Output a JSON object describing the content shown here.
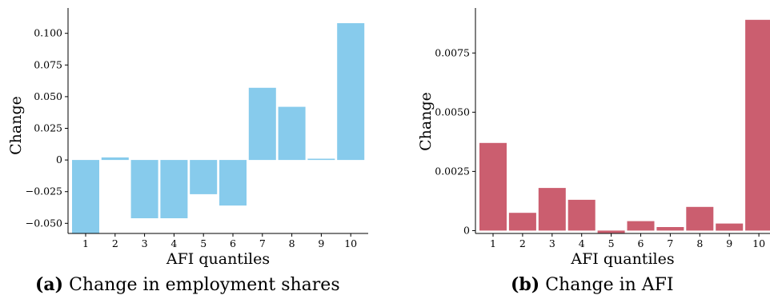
{
  "chart_data": [
    {
      "type": "bar",
      "panel_label": "(a)",
      "caption": "Change in employment shares",
      "xlabel": "AFI quantiles",
      "ylabel": "Change",
      "categories": [
        "1",
        "2",
        "3",
        "4",
        "5",
        "6",
        "7",
        "8",
        "9",
        "10"
      ],
      "values": [
        -0.063,
        0.002,
        -0.046,
        -0.046,
        -0.027,
        -0.036,
        0.057,
        0.042,
        0.001,
        0.108
      ],
      "ylim": [
        -0.058,
        0.12
      ],
      "yticks": [
        -0.05,
        -0.025,
        0,
        0.025,
        0.05,
        0.075,
        0.1
      ],
      "ytick_labels": [
        "−0.050",
        "−0.025",
        "0",
        "0.025",
        "0.050",
        "0.075",
        "0.100"
      ],
      "color": "#87CBEC",
      "grid": false
    },
    {
      "type": "bar",
      "panel_label": "(b)",
      "caption": "Change in AFI",
      "xlabel": "AFI quantiles",
      "ylabel": "Change",
      "categories": [
        "1",
        "2",
        "3",
        "4",
        "5",
        "6",
        "7",
        "8",
        "9",
        "10"
      ],
      "values": [
        0.0037,
        0.00075,
        0.0018,
        0.0013,
        -0.0001,
        0.0004,
        0.00015,
        0.001,
        0.0003,
        0.0089
      ],
      "ylim": [
        -0.00012,
        0.0094
      ],
      "yticks": [
        0,
        0.0025,
        0.005,
        0.0075
      ],
      "ytick_labels": [
        "0",
        "0.0025",
        "0.0050",
        "0.0075"
      ],
      "color": "#CB5E6F",
      "grid": false
    }
  ]
}
